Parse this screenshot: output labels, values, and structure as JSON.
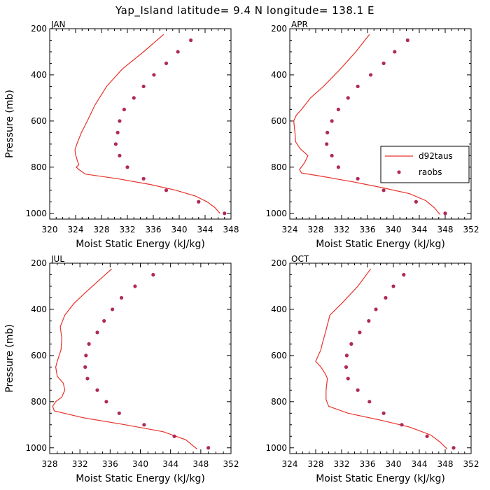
{
  "title": "Yap_Island  latitude= 9.4 N longitude= 138.1 E",
  "colors": {
    "line": "#e8322a",
    "dots": "#b02a55",
    "axis": "#000000"
  },
  "chart_data": [
    {
      "type": "line",
      "panel": "JAN",
      "xlabel": "Moist Static Energy (kJ/kg)",
      "ylabel": "Pressure (mb)",
      "xlim": [
        320,
        348
      ],
      "xticks": [
        320,
        324,
        328,
        332,
        336,
        340,
        344,
        348
      ],
      "ylim": [
        200,
        1025
      ],
      "yticks": [
        200,
        400,
        600,
        800,
        1000
      ],
      "series": [
        {
          "name": "d92taus",
          "style": "line",
          "x": [
            337.6,
            334.5,
            331.2,
            328.8,
            327.0,
            325.8,
            324.9,
            324.2,
            323.9,
            324.0,
            324.2,
            324.5,
            324.1,
            324.5,
            325.5,
            330.5,
            335.5,
            339.5,
            342.5,
            344.3,
            345.5,
            346.3
          ],
          "y": [
            225,
            300,
            375,
            450,
            530,
            600,
            650,
            700,
            725,
            745,
            765,
            790,
            800,
            810,
            830,
            850,
            875,
            900,
            925,
            950,
            975,
            1000
          ]
        },
        {
          "name": "raobs",
          "style": "dots",
          "x": [
            341.8,
            339.8,
            338.0,
            336.1,
            334.5,
            333.0,
            331.5,
            330.8,
            330.5,
            330.2,
            330.8,
            332.0,
            334.5,
            338.0,
            343.0,
            347.0
          ],
          "y": [
            250,
            300,
            350,
            400,
            450,
            500,
            550,
            600,
            650,
            700,
            750,
            800,
            850,
            900,
            950,
            1000
          ]
        }
      ]
    },
    {
      "type": "line",
      "panel": "APR",
      "xlabel": "Moist Static Energy (kJ/kg)",
      "ylabel": "Pressure (mb)",
      "xlim": [
        324,
        352
      ],
      "xticks": [
        324,
        328,
        332,
        336,
        340,
        344,
        348,
        352
      ],
      "ylim": [
        200,
        1025
      ],
      "yticks": [
        200,
        400,
        600,
        800,
        1000
      ],
      "series": [
        {
          "name": "d92taus",
          "style": "line",
          "x": [
            336.3,
            334.2,
            331.8,
            329.2,
            327.2,
            325.8,
            325.0,
            324.6,
            324.8,
            324.9,
            325.6,
            326.8,
            326.3,
            325.5,
            325.8,
            329.0,
            334.0,
            338.5,
            342.5,
            345.0,
            346.3,
            347.2
          ],
          "y": [
            225,
            300,
            375,
            450,
            500,
            550,
            575,
            600,
            650,
            690,
            720,
            750,
            780,
            810,
            825,
            840,
            865,
            890,
            915,
            945,
            975,
            1005
          ]
        },
        {
          "name": "raobs",
          "style": "dots",
          "x": [
            342.2,
            340.2,
            338.5,
            336.5,
            334.5,
            333.0,
            331.5,
            330.5,
            329.8,
            329.7,
            330.5,
            331.5,
            334.5,
            338.5,
            343.5,
            348.0
          ],
          "y": [
            250,
            300,
            350,
            400,
            450,
            500,
            550,
            600,
            650,
            700,
            750,
            800,
            850,
            900,
            950,
            1000
          ]
        }
      ]
    },
    {
      "type": "line",
      "panel": "JUL",
      "xlabel": "Moist Static Energy (kJ/kg)",
      "ylabel": "Pressure (mb)",
      "xlim": [
        328,
        352
      ],
      "xticks": [
        328,
        332,
        336,
        340,
        344,
        348,
        352
      ],
      "ylim": [
        200,
        1025
      ],
      "yticks": [
        200,
        400,
        600,
        800,
        1000
      ],
      "series": [
        {
          "name": "d92taus",
          "style": "line",
          "x": [
            336.2,
            334.5,
            332.8,
            331.2,
            330.0,
            329.4,
            329.5,
            329.6,
            329.5,
            329.0,
            328.8,
            329.0,
            329.8,
            330.0,
            329.6,
            328.8,
            328.4,
            328.6,
            332.5,
            338.0,
            343.0,
            346.0,
            347.5
          ],
          "y": [
            225,
            275,
            325,
            375,
            425,
            475,
            500,
            525,
            575,
            625,
            650,
            690,
            720,
            750,
            780,
            800,
            820,
            840,
            870,
            900,
            930,
            965,
            1005
          ]
        },
        {
          "name": "raobs",
          "style": "dots",
          "x": [
            341.7,
            339.3,
            337.5,
            336.3,
            335.2,
            334.3,
            333.2,
            332.8,
            332.7,
            333.0,
            334.3,
            335.5,
            337.2,
            340.5,
            344.5,
            349.0
          ],
          "y": [
            250,
            300,
            350,
            400,
            450,
            500,
            550,
            600,
            650,
            700,
            750,
            800,
            850,
            900,
            950,
            1000
          ]
        }
      ]
    },
    {
      "type": "line",
      "panel": "OCT",
      "xlabel": "Moist Static Energy (kJ/kg)",
      "ylabel": "Pressure (mb)",
      "xlim": [
        324,
        352
      ],
      "xticks": [
        324,
        328,
        332,
        336,
        340,
        344,
        348,
        352
      ],
      "ylim": [
        200,
        1025
      ],
      "yticks": [
        200,
        400,
        600,
        800,
        1000
      ],
      "series": [
        {
          "name": "d92taus",
          "style": "line",
          "x": [
            336.5,
            334.5,
            332.0,
            330.2,
            329.5,
            329.0,
            328.8,
            328.4,
            328.0,
            328.8,
            329.5,
            329.8,
            329.6,
            329.6,
            330.0,
            333.0,
            338.0,
            342.5,
            345.8,
            347.2,
            348.3
          ],
          "y": [
            225,
            300,
            375,
            425,
            500,
            550,
            575,
            600,
            625,
            650,
            680,
            700,
            750,
            790,
            820,
            850,
            880,
            910,
            945,
            975,
            1005
          ]
        },
        {
          "name": "raobs",
          "style": "dots",
          "x": [
            341.6,
            340.0,
            338.8,
            337.3,
            336.2,
            334.8,
            333.5,
            332.8,
            332.7,
            333.0,
            334.5,
            336.3,
            338.5,
            341.3,
            345.2,
            349.3
          ],
          "y": [
            250,
            300,
            350,
            400,
            450,
            500,
            550,
            600,
            650,
            700,
            750,
            800,
            850,
            900,
            950,
            1000
          ]
        }
      ]
    }
  ],
  "legend": {
    "line_label": "d92taus",
    "dots_label": "raobs",
    "panel": "APR"
  }
}
